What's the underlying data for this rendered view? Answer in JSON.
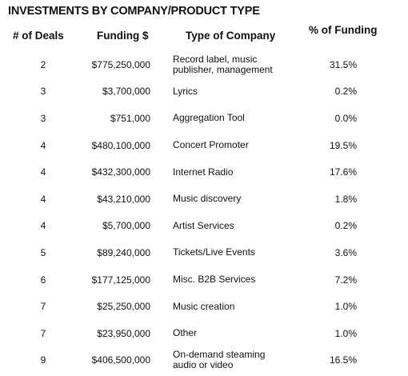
{
  "title": "INVESTMENTS BY COMPANY/PRODUCT TYPE",
  "columns": {
    "deals": "# of Deals",
    "funding": "Funding $",
    "type": "Type of Company",
    "pct": "% of Funding"
  },
  "rows": [
    {
      "deals": "2",
      "funding": "$775,250,000",
      "type": "Record label, music\npublisher, management",
      "pct": "31.5%"
    },
    {
      "deals": "3",
      "funding": "$3,700,000",
      "type": "Lyrics",
      "pct": "0.2%"
    },
    {
      "deals": "3",
      "funding": "$751,000",
      "type": "Aggregation Tool",
      "pct": "0.0%"
    },
    {
      "deals": "4",
      "funding": "$480,100,000",
      "type": "Concert Promoter",
      "pct": "19.5%"
    },
    {
      "deals": "4",
      "funding": "$432,300,000",
      "type": "Internet Radio",
      "pct": "17.6%"
    },
    {
      "deals": "4",
      "funding": "$43,210,000",
      "type": "Music discovery",
      "pct": "1.8%"
    },
    {
      "deals": "4",
      "funding": "$5,700,000",
      "type": "Artist Services",
      "pct": "0.2%"
    },
    {
      "deals": "5",
      "funding": "$89,240,000",
      "type": "Tickets/Live Events",
      "pct": "3.6%"
    },
    {
      "deals": "6",
      "funding": "$177,125,000",
      "type": "Misc. B2B Services",
      "pct": "7.2%"
    },
    {
      "deals": "7",
      "funding": "$25,250,000",
      "type": "Music creation",
      "pct": "1.0%"
    },
    {
      "deals": "7",
      "funding": "$23,950,000",
      "type": "Other",
      "pct": "1.0%"
    },
    {
      "deals": "9",
      "funding": "$406,500,000",
      "type": "On-demand steaming\naudio or video",
      "pct": "16.5%"
    }
  ]
}
